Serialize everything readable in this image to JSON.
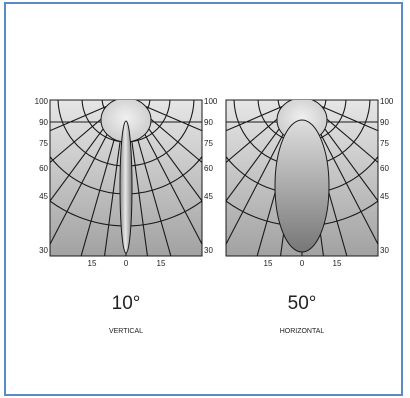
{
  "colors": {
    "frame_border": "#5b8bc6",
    "grid_line": "#1a1a1a",
    "panel_top": "#e4e4e4",
    "panel_bottom": "#a4a4a4"
  },
  "left_panel": {
    "y_ticks": [
      "100",
      "90",
      "75",
      "60",
      "45",
      "30"
    ],
    "x_ticks": [
      "15",
      "0",
      "15"
    ],
    "angle": "10°",
    "label": "VERTICAL"
  },
  "right_panel": {
    "y_ticks": [
      "100",
      "90",
      "75",
      "60",
      "45",
      "30"
    ],
    "x_ticks": [
      "15",
      "0",
      "15"
    ],
    "angle": "50°",
    "label": "HORIZONTAL"
  }
}
